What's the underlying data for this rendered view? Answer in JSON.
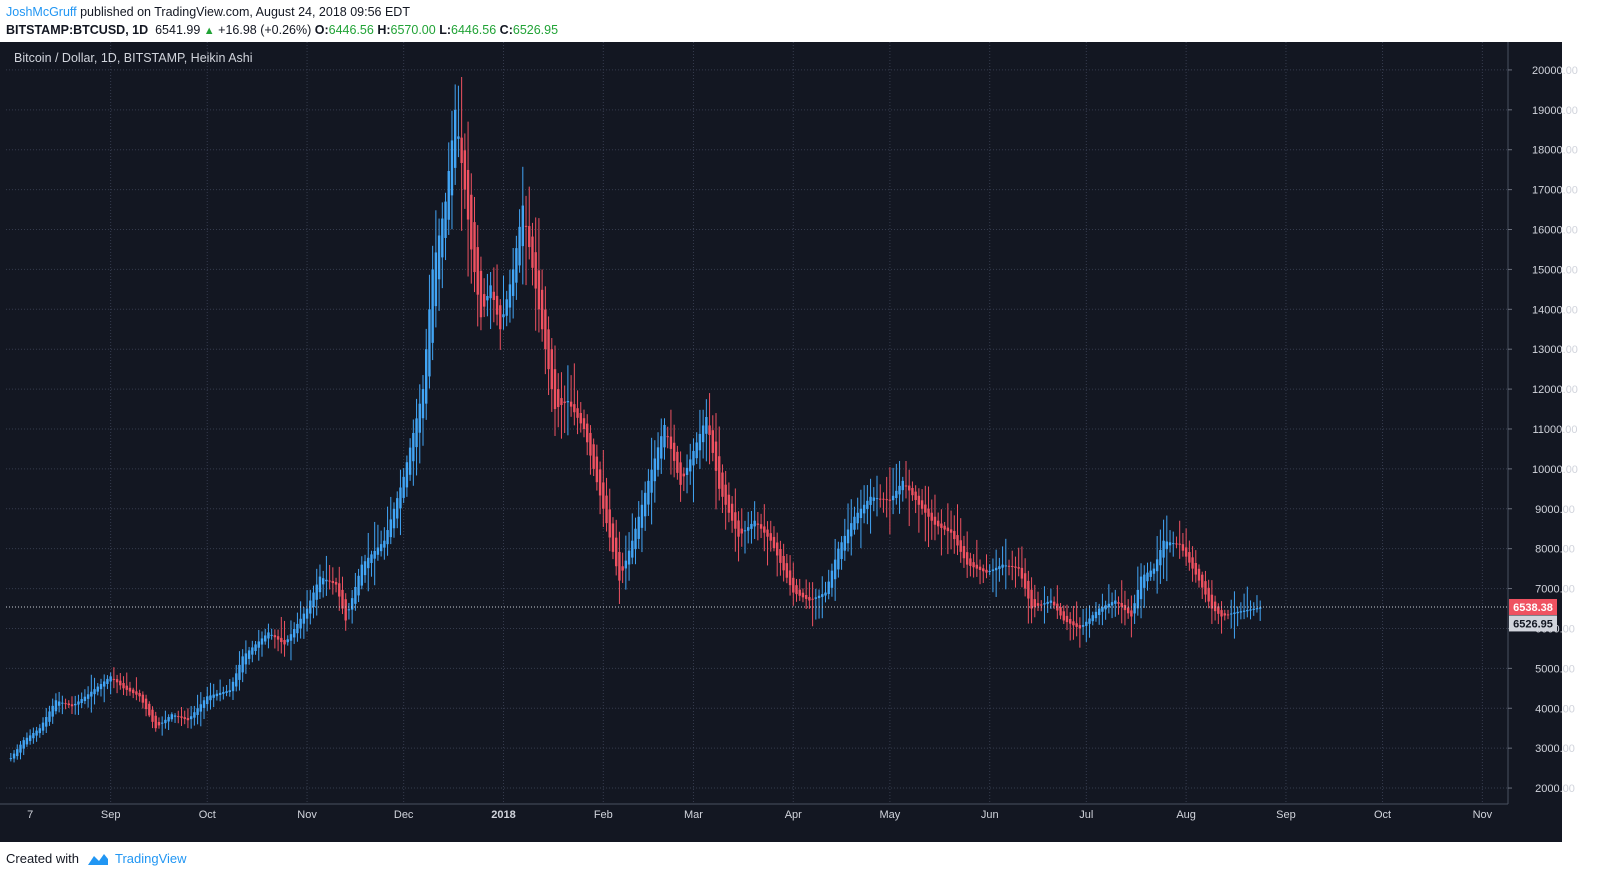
{
  "header": {
    "author": "JoshMcGruff",
    "published": " published on TradingView.com, August 24, 2018 09:56 EDT",
    "symbol": "BITSTAMP:BTCUSD, 1D",
    "price": "6541.99",
    "change": "+16.98 (+0.26%)",
    "o_label": "O:",
    "o_val": "6446.56",
    "h_label": "H:",
    "h_val": "6570.00",
    "l_label": "L:",
    "l_val": "6446.56",
    "c_label": "C:",
    "c_val": "6526.95"
  },
  "footer": {
    "created": "Created with",
    "brand": "TradingView"
  },
  "colors": {
    "background": "#131722",
    "up": "#42a5f5",
    "down": "#ef5261",
    "grid": "#363c4e",
    "text": "#d1d4dc"
  },
  "chart_data": {
    "type": "candlestick",
    "title": "Bitcoin / Dollar, 1D, BITSTAMP, Heikin Ashi",
    "x_ticks": [
      "7",
      "Sep",
      "Oct",
      "Nov",
      "Dec",
      "2018",
      "Feb",
      "Mar",
      "Apr",
      "May",
      "Jun",
      "Jul",
      "Aug",
      "Sep",
      "Oct",
      "Nov"
    ],
    "y_ticks": [
      "2000.00",
      "3000.00",
      "4000.00",
      "5000.00",
      "6000.00",
      "7000.00",
      "8000.00",
      "9000.00",
      "10000.00",
      "11000.00",
      "12000.00",
      "13000.00",
      "14000.00",
      "15000.00",
      "16000.00",
      "17000.00",
      "18000.00",
      "19000.00",
      "20000.00"
    ],
    "ylim": [
      1600,
      20700
    ],
    "last_price": "6538.38",
    "close_label": "6526.95",
    "close_anchors": [
      {
        "d": "2017-08-01",
        "v": 2750
      },
      {
        "d": "2017-08-05",
        "v": 3200
      },
      {
        "d": "2017-08-10",
        "v": 3500
      },
      {
        "d": "2017-08-15",
        "v": 4200
      },
      {
        "d": "2017-08-20",
        "v": 4050
      },
      {
        "d": "2017-08-25",
        "v": 4350
      },
      {
        "d": "2017-09-01",
        "v": 4800
      },
      {
        "d": "2017-09-05",
        "v": 4500
      },
      {
        "d": "2017-09-10",
        "v": 4300
      },
      {
        "d": "2017-09-15",
        "v": 3500
      },
      {
        "d": "2017-09-20",
        "v": 3850
      },
      {
        "d": "2017-09-25",
        "v": 3700
      },
      {
        "d": "2017-10-01",
        "v": 4300
      },
      {
        "d": "2017-10-08",
        "v": 4450
      },
      {
        "d": "2017-10-12",
        "v": 5300
      },
      {
        "d": "2017-10-20",
        "v": 5900
      },
      {
        "d": "2017-10-25",
        "v": 5600
      },
      {
        "d": "2017-11-01",
        "v": 6500
      },
      {
        "d": "2017-11-05",
        "v": 7300
      },
      {
        "d": "2017-11-10",
        "v": 7100
      },
      {
        "d": "2017-11-13",
        "v": 6200
      },
      {
        "d": "2017-11-18",
        "v": 7600
      },
      {
        "d": "2017-11-25",
        "v": 8200
      },
      {
        "d": "2017-12-01",
        "v": 9800
      },
      {
        "d": "2017-12-07",
        "v": 12000
      },
      {
        "d": "2017-12-10",
        "v": 15000
      },
      {
        "d": "2017-12-14",
        "v": 16700
      },
      {
        "d": "2017-12-17",
        "v": 19000
      },
      {
        "d": "2017-12-20",
        "v": 17000
      },
      {
        "d": "2017-12-22",
        "v": 15500
      },
      {
        "d": "2017-12-25",
        "v": 13800
      },
      {
        "d": "2017-12-28",
        "v": 14600
      },
      {
        "d": "2017-12-31",
        "v": 13500
      },
      {
        "d": "2018-01-04",
        "v": 15000
      },
      {
        "d": "2018-01-07",
        "v": 16600
      },
      {
        "d": "2018-01-12",
        "v": 14000
      },
      {
        "d": "2018-01-17",
        "v": 11500
      },
      {
        "d": "2018-01-21",
        "v": 11700
      },
      {
        "d": "2018-01-26",
        "v": 11000
      },
      {
        "d": "2018-02-01",
        "v": 9000
      },
      {
        "d": "2018-02-06",
        "v": 7200
      },
      {
        "d": "2018-02-10",
        "v": 8200
      },
      {
        "d": "2018-02-15",
        "v": 9700
      },
      {
        "d": "2018-02-20",
        "v": 11100
      },
      {
        "d": "2018-02-25",
        "v": 9600
      },
      {
        "d": "2018-03-05",
        "v": 11300
      },
      {
        "d": "2018-03-09",
        "v": 9500
      },
      {
        "d": "2018-03-15",
        "v": 8300
      },
      {
        "d": "2018-03-20",
        "v": 8700
      },
      {
        "d": "2018-03-25",
        "v": 8200
      },
      {
        "d": "2018-04-01",
        "v": 6900
      },
      {
        "d": "2018-04-06",
        "v": 6700
      },
      {
        "d": "2018-04-11",
        "v": 6900
      },
      {
        "d": "2018-04-15",
        "v": 8000
      },
      {
        "d": "2018-04-20",
        "v": 8800
      },
      {
        "d": "2018-04-25",
        "v": 9300
      },
      {
        "d": "2018-05-01",
        "v": 9200
      },
      {
        "d": "2018-05-05",
        "v": 9700
      },
      {
        "d": "2018-05-10",
        "v": 9100
      },
      {
        "d": "2018-05-15",
        "v": 8600
      },
      {
        "d": "2018-05-20",
        "v": 8400
      },
      {
        "d": "2018-05-25",
        "v": 7600
      },
      {
        "d": "2018-05-31",
        "v": 7400
      },
      {
        "d": "2018-06-05",
        "v": 7600
      },
      {
        "d": "2018-06-10",
        "v": 7500
      },
      {
        "d": "2018-06-14",
        "v": 6500
      },
      {
        "d": "2018-06-20",
        "v": 6700
      },
      {
        "d": "2018-06-24",
        "v": 6200
      },
      {
        "d": "2018-06-29",
        "v": 6000
      },
      {
        "d": "2018-07-05",
        "v": 6500
      },
      {
        "d": "2018-07-10",
        "v": 6700
      },
      {
        "d": "2018-07-15",
        "v": 6300
      },
      {
        "d": "2018-07-18",
        "v": 7300
      },
      {
        "d": "2018-07-22",
        "v": 7500
      },
      {
        "d": "2018-07-25",
        "v": 8200
      },
      {
        "d": "2018-07-30",
        "v": 8100
      },
      {
        "d": "2018-08-05",
        "v": 7200
      },
      {
        "d": "2018-08-09",
        "v": 6500
      },
      {
        "d": "2018-08-12",
        "v": 6300
      },
      {
        "d": "2018-08-16",
        "v": 6400
      },
      {
        "d": "2018-08-24",
        "v": 6527
      }
    ]
  }
}
